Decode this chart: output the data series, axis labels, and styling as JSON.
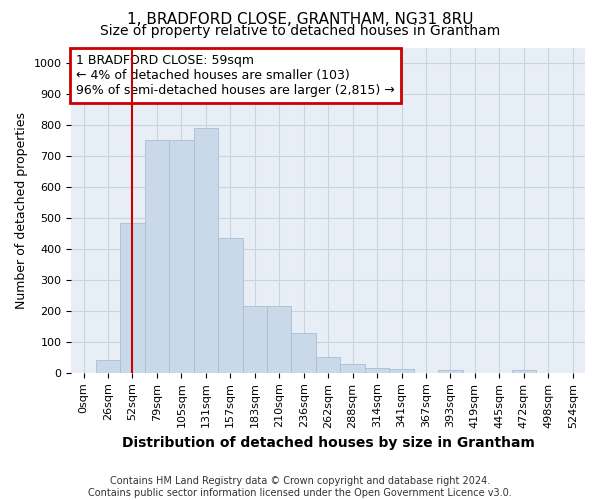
{
  "title": "1, BRADFORD CLOSE, GRANTHAM, NG31 8RU",
  "subtitle": "Size of property relative to detached houses in Grantham",
  "xlabel": "Distribution of detached houses by size in Grantham",
  "ylabel": "Number of detached properties",
  "bar_labels": [
    "0sqm",
    "26sqm",
    "52sqm",
    "79sqm",
    "105sqm",
    "131sqm",
    "157sqm",
    "183sqm",
    "210sqm",
    "236sqm",
    "262sqm",
    "288sqm",
    "314sqm",
    "341sqm",
    "367sqm",
    "393sqm",
    "419sqm",
    "445sqm",
    "472sqm",
    "498sqm",
    "524sqm"
  ],
  "bar_values": [
    0,
    42,
    483,
    750,
    750,
    790,
    435,
    217,
    217,
    130,
    50,
    28,
    15,
    12,
    0,
    8,
    0,
    0,
    8,
    0,
    0
  ],
  "bar_color": "#c9d9ea",
  "bar_edgecolor": "#aabfcf",
  "property_line_x": 2.0,
  "annotation_line1": "1 BRADFORD CLOSE: 59sqm",
  "annotation_line2": "← 4% of detached houses are smaller (103)",
  "annotation_line3": "96% of semi-detached houses are larger (2,815) →",
  "annotation_box_color": "#ffffff",
  "annotation_box_edgecolor": "#cc0000",
  "vline_color": "#cc0000",
  "ylim": [
    0,
    1050
  ],
  "yticks": [
    0,
    100,
    200,
    300,
    400,
    500,
    600,
    700,
    800,
    900,
    1000
  ],
  "grid_color": "#c8d4e0",
  "background_color": "#e8eef5",
  "footer_text": "Contains HM Land Registry data © Crown copyright and database right 2024.\nContains public sector information licensed under the Open Government Licence v3.0.",
  "title_fontsize": 11,
  "subtitle_fontsize": 10,
  "xlabel_fontsize": 10,
  "ylabel_fontsize": 9,
  "annotation_fontsize": 9,
  "tick_fontsize": 8,
  "footer_fontsize": 7
}
